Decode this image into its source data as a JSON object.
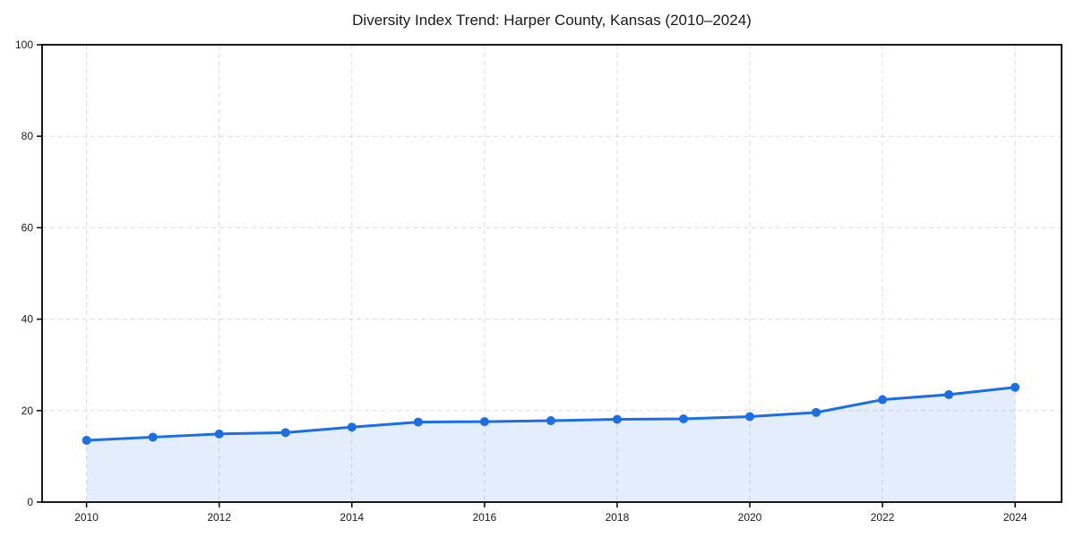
{
  "chart_data": {
    "type": "line",
    "title": "Diversity Index Trend: Harper County, Kansas (2010–2024)",
    "x": [
      2010,
      2011,
      2012,
      2013,
      2014,
      2015,
      2016,
      2017,
      2018,
      2019,
      2020,
      2021,
      2022,
      2023,
      2024
    ],
    "series": [
      {
        "name": "Diversity Index",
        "values": [
          13.5,
          14.2,
          14.9,
          15.2,
          16.4,
          17.5,
          17.6,
          17.8,
          18.1,
          18.2,
          18.7,
          19.6,
          22.4,
          23.5,
          25.1
        ]
      }
    ],
    "xlabel": "",
    "ylabel": "",
    "xlim": [
      2009.33,
      2024.7
    ],
    "ylim": [
      0,
      100
    ],
    "x_ticks": [
      2010,
      2012,
      2014,
      2016,
      2018,
      2020,
      2022,
      2024
    ],
    "y_ticks": [
      0,
      20,
      40,
      60,
      80,
      100
    ],
    "grid": true,
    "legend": "none",
    "area_fill": true,
    "marker": "circle",
    "colors": {
      "line": "#1d6ee3",
      "marker": "#1d6ee3",
      "fill": "#1d6ee3",
      "fill_opacity": 0.12,
      "grid": "#dddddd",
      "spine": "#000000",
      "text": "#1a1a1a",
      "background": "#ffffff"
    }
  }
}
